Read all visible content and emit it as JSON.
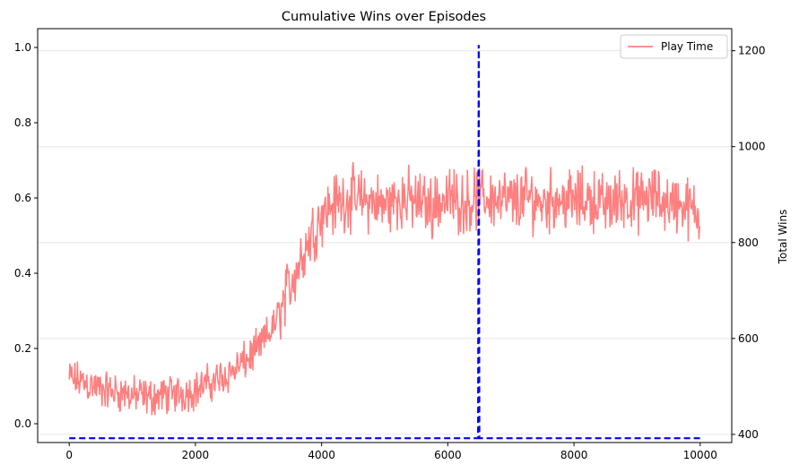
{
  "chart_data": {
    "type": "line",
    "title": "Cumulative Wins over Episodes",
    "xlabel": "",
    "ylabel_left": "",
    "ylabel_right": "Total Wins",
    "xlim": [
      -500,
      10500
    ],
    "ylim_left": [
      -0.05,
      1.05
    ],
    "ylim_right": [
      383,
      1246
    ],
    "x_ticks": [
      0,
      2000,
      4000,
      6000,
      8000,
      10000
    ],
    "y_left_ticks": [
      0.0,
      0.2,
      0.4,
      0.6,
      0.8,
      1.0
    ],
    "y_right_ticks": [
      400,
      600,
      800,
      1000,
      1200
    ],
    "grid": "horizontal (right axis)",
    "legend": {
      "placement": "top-right",
      "entries": [
        "Play Time"
      ]
    },
    "series": [
      {
        "name": "Play Time",
        "axis": "left",
        "color": "#ff7f7f",
        "style": "solid",
        "x": [
          0,
          250,
          500,
          750,
          1000,
          1250,
          1500,
          1750,
          2000,
          2250,
          2500,
          2750,
          3000,
          3250,
          3500,
          3750,
          4000,
          4250,
          4500,
          4750,
          5000,
          5250,
          5500,
          5750,
          6000,
          6250,
          6500,
          6750,
          7000,
          7250,
          7500,
          7750,
          8000,
          8250,
          8500,
          8750,
          9000,
          9250,
          9500,
          9750,
          10000
        ],
        "y": [
          0.12,
          0.11,
          0.09,
          0.085,
          0.075,
          0.07,
          0.075,
          0.08,
          0.09,
          0.11,
          0.13,
          0.16,
          0.2,
          0.26,
          0.37,
          0.47,
          0.56,
          0.59,
          0.6,
          0.59,
          0.58,
          0.6,
          0.59,
          0.58,
          0.6,
          0.59,
          0.6,
          0.6,
          0.59,
          0.6,
          0.59,
          0.6,
          0.59,
          0.6,
          0.58,
          0.6,
          0.59,
          0.6,
          0.59,
          0.58,
          0.55
        ],
        "noise_amplitude": 0.04
      },
      {
        "name": "",
        "axis": "right",
        "color": "#0000ff",
        "style": "dashed",
        "x": [
          0,
          6480,
          6490,
          6500,
          10000
        ],
        "y": [
          392,
          392,
          1212,
          392,
          392
        ]
      }
    ]
  }
}
